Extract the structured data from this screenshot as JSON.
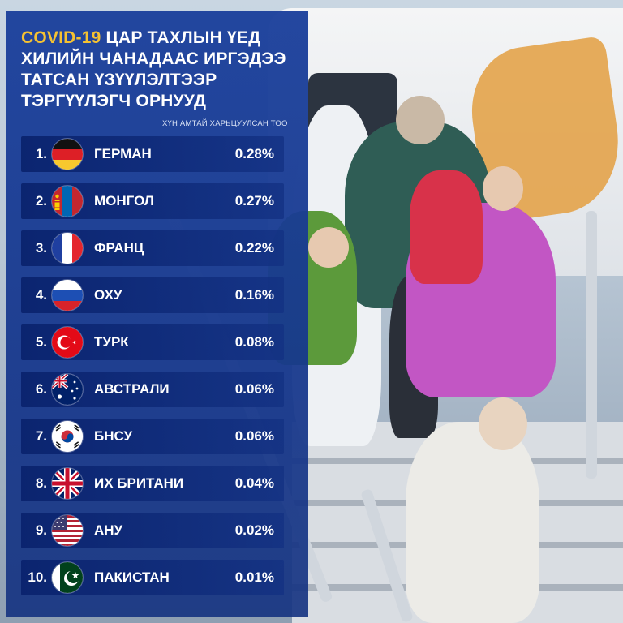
{
  "title_lines": [
    {
      "highlight": "COVID-19",
      "text": " ЦАР ТАХЛЫН ҮЕД"
    },
    {
      "highlight": "",
      "text": "ХИЛИЙН ЧАНАДААС ИРГЭДЭЭ"
    },
    {
      "highlight": "",
      "text": "ТАТСАН ҮЗҮҮЛЭЛТЭЭР"
    },
    {
      "highlight": "",
      "text": "ТЭРГҮҮЛЭГЧ ОРНУУД"
    }
  ],
  "subtitle": "ХҮН АМТАЙ ХАРЬЦУУЛСАН ТОО",
  "colors": {
    "panel": "#1b409c",
    "highlight": "#f5c232",
    "row": "#0a236e"
  },
  "chart_data": {
    "type": "table",
    "title": "COVID-19 ЦАР ТАХЛЫН ҮЕД ХИЛИЙН ЧАНАДААС ИРГЭДЭЭ ТАТСАН ҮЗҮҮЛЭЛТЭЭР ТЭРГҮҮЛЭГЧ ОРНУУД",
    "subtitle": "ХҮН АМТАЙ ХАРЬЦУУЛСАН ТОО",
    "rows": [
      {
        "rank": "1.",
        "flag": "germany-flag-icon",
        "country": "ГЕРМАН",
        "value": "0.28%"
      },
      {
        "rank": "2.",
        "flag": "mongolia-flag-icon",
        "country": "МОНГОЛ",
        "value": "0.27%"
      },
      {
        "rank": "3.",
        "flag": "france-flag-icon",
        "country": "ФРАНЦ",
        "value": "0.22%"
      },
      {
        "rank": "4.",
        "flag": "russia-flag-icon",
        "country": "ОХУ",
        "value": "0.16%"
      },
      {
        "rank": "5.",
        "flag": "turkey-flag-icon",
        "country": "ТУРК",
        "value": "0.08%"
      },
      {
        "rank": "6.",
        "flag": "australia-flag-icon",
        "country": "АВСТРАЛИ",
        "value": "0.06%"
      },
      {
        "rank": "7.",
        "flag": "south-korea-flag-icon",
        "country": "БНСУ",
        "value": "0.06%"
      },
      {
        "rank": "8.",
        "flag": "uk-flag-icon",
        "country": "ИХ БРИТАНИ",
        "value": "0.04%"
      },
      {
        "rank": "9.",
        "flag": "usa-flag-icon",
        "country": "АНУ",
        "value": "0.02%"
      },
      {
        "rank": "10.",
        "flag": "pakistan-flag-icon",
        "country": "ПАКИСТАН",
        "value": "0.01%"
      }
    ]
  }
}
